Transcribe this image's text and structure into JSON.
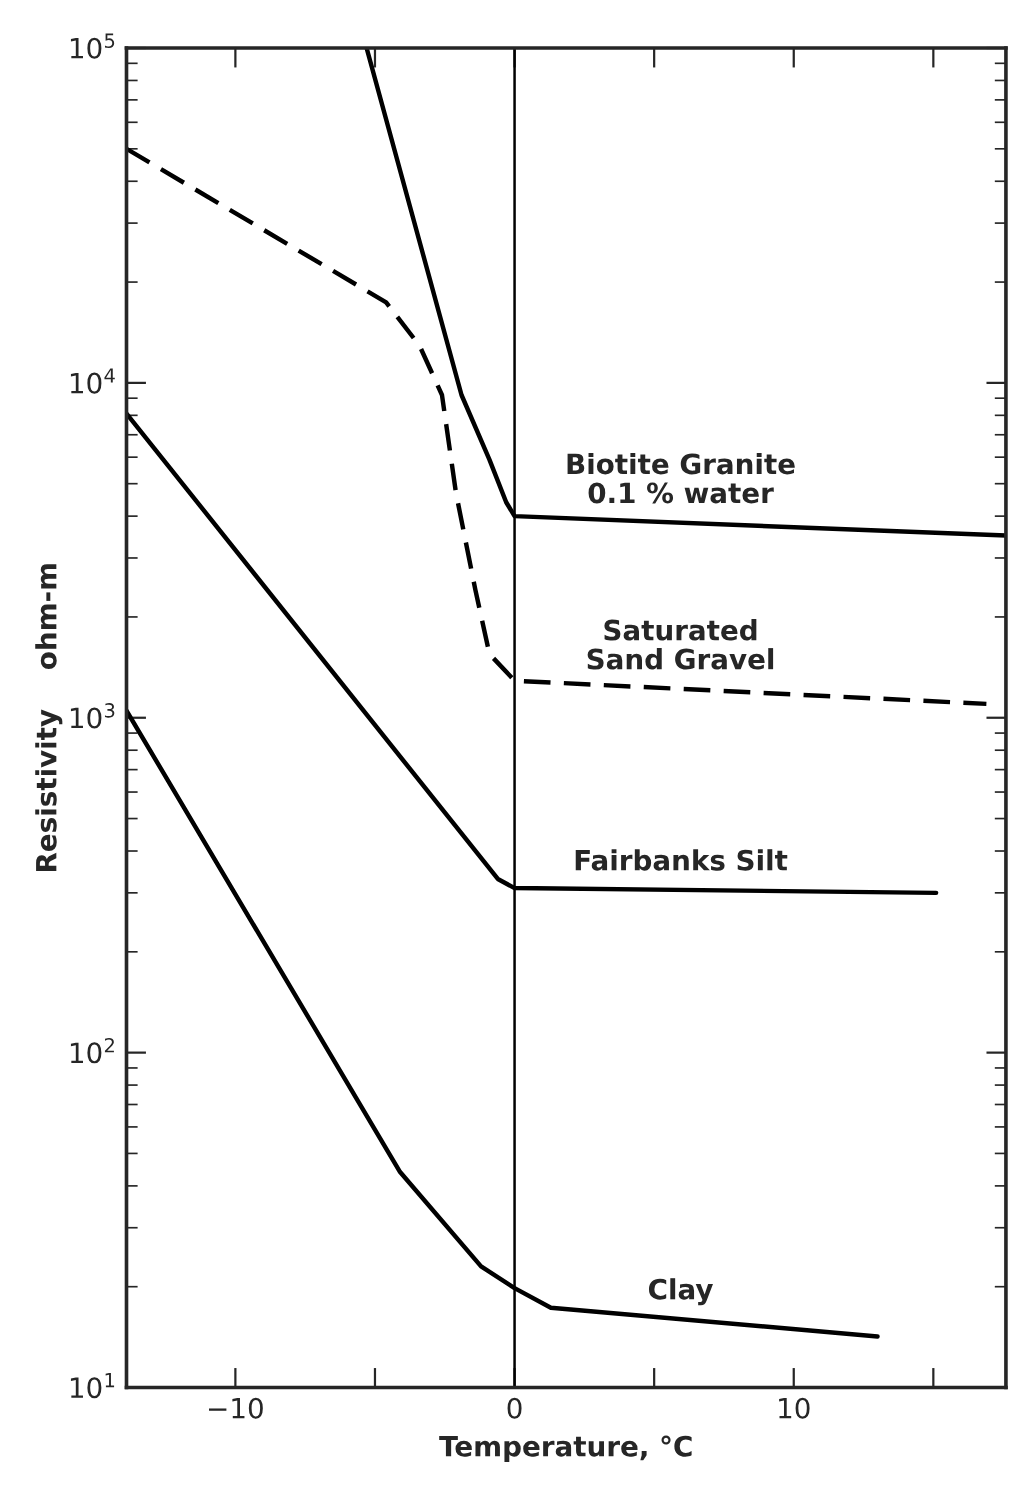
{
  "chart_data": {
    "type": "line",
    "xlabel": "Temperature, °C",
    "ylabel": "Resistivity    ohm-m",
    "log": "y",
    "xlim": [
      -13.9,
      17.6
    ],
    "ylim": [
      10,
      100000
    ],
    "xticks": [
      {
        "value": -10,
        "label": "−10"
      },
      {
        "value": -5,
        "label": null
      },
      0,
      {
        "value": 5,
        "label": null
      },
      10,
      {
        "value": 15,
        "label": null
      }
    ],
    "yticks": [
      {
        "value": 10,
        "label": "10$^{1}$"
      },
      {
        "value": 100,
        "label": "10$^{2}$"
      },
      {
        "value": 1000,
        "label": "10$^{3}$"
      },
      {
        "value": 10000,
        "label": "10$^{4}$"
      },
      {
        "value": 100000,
        "label": "10$^{5}$"
      }
    ],
    "grid": false,
    "legend": false,
    "ref_lines": [
      {
        "axis": "x",
        "value": 0,
        "color": "#000000",
        "line_style": "solid"
      }
    ],
    "series": [
      {
        "name": "Biotite Granite\n0.1 % water",
        "color": "#000000",
        "line_style": "solid",
        "x": [
          -5.3,
          -1.9,
          -0.9,
          -0.3,
          0,
          17.6
        ],
        "values": [
          100000,
          9200,
          5900,
          4400,
          4000,
          3500
        ]
      },
      {
        "name": "Saturated\nSand Gravel",
        "color": "#000000",
        "line_style": "dashed",
        "x": [
          -13.9,
          -4.6,
          -3.4,
          -2.6,
          -2.1,
          -1.4,
          -0.9,
          0,
          16.9
        ],
        "values": [
          50000,
          17400,
          12900,
          9200,
          4700,
          2400,
          1550,
          1290,
          1100
        ]
      },
      {
        "name": "Fairbanks Silt",
        "color": "#000000",
        "line_style": "solid",
        "x": [
          -13.9,
          -0.6,
          0,
          15.1
        ],
        "values": [
          8100,
          330,
          310,
          300
        ]
      },
      {
        "name": "Clay",
        "color": "#000000",
        "line_style": "solid",
        "x": [
          -13.9,
          -4.1,
          -1.2,
          0,
          1.3,
          13.0
        ],
        "values": [
          1050,
          44,
          23,
          19.8,
          17.3,
          14.2
        ]
      }
    ]
  }
}
